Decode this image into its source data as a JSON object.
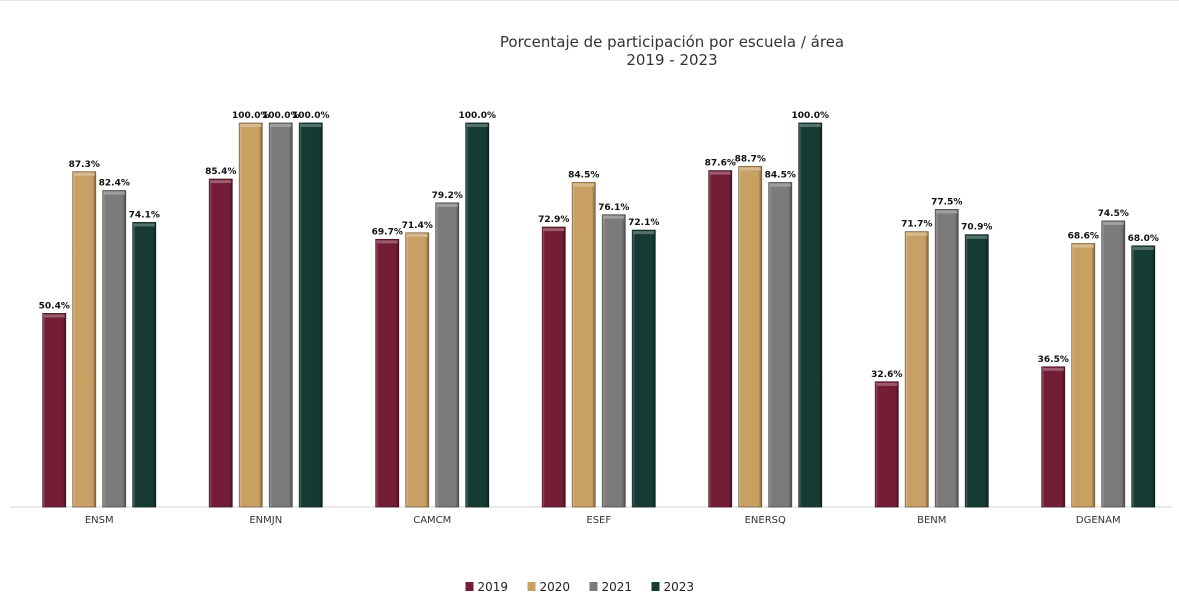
{
  "chart_data": {
    "type": "bar",
    "title": "Porcentaje de participación por escuela / área",
    "subtitle": "2019 - 2023",
    "categories": [
      "ENSM",
      "ENMJN",
      "CAMCM",
      "ESEF",
      "ENERSQ",
      "BENM",
      "DGENAM"
    ],
    "series": [
      {
        "name": "2019",
        "color": "#741d36",
        "values": [
          50.4,
          85.4,
          69.7,
          72.9,
          87.6,
          32.6,
          36.5
        ],
        "labels": [
          "50.4%",
          "85.4%",
          "69.7%",
          "72.9%",
          "87.6%",
          "32.6%",
          "36.5%"
        ]
      },
      {
        "name": "2020",
        "color": "#c9a063",
        "values": [
          87.3,
          100.0,
          71.4,
          84.5,
          88.7,
          71.7,
          68.6
        ],
        "labels": [
          "87.3%",
          "100.0%",
          "71.4%",
          "84.5%",
          "88.7%",
          "71.7%",
          "68.6%"
        ]
      },
      {
        "name": "2021",
        "color": "#7b7b7b",
        "values": [
          82.4,
          100.0,
          79.2,
          76.1,
          84.5,
          77.5,
          74.5
        ],
        "labels": [
          "82.4%",
          "100.0%",
          "79.2%",
          "76.1%",
          "84.5%",
          "77.5%",
          "74.5%"
        ]
      },
      {
        "name": "2023",
        "color": "#163b35",
        "values": [
          74.1,
          100.0,
          100.0,
          72.1,
          100.0,
          70.9,
          68.0
        ],
        "labels": [
          "74.1%",
          "100.0%",
          "100.0%",
          "72.1%",
          "100.0%",
          "70.9%",
          "68.0%"
        ]
      }
    ],
    "ylim": [
      0,
      100
    ],
    "grid": false,
    "legend": "bottom-center"
  }
}
